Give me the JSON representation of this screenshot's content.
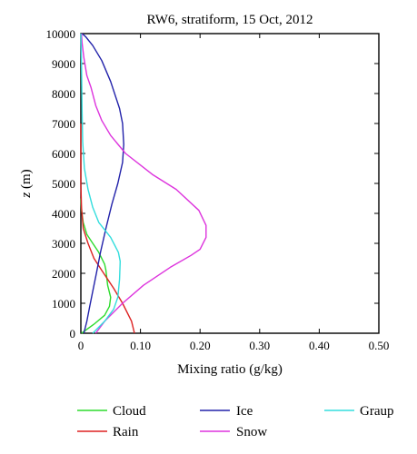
{
  "chart_data": {
    "type": "line",
    "title": "RW6, stratiform, 15 Oct, 2012",
    "xlabel": "Mixing ratio (g/kg)",
    "ylabel_italic": "z",
    "ylabel_unit": " (m)",
    "xlim": [
      0,
      0.5
    ],
    "ylim": [
      0,
      10000
    ],
    "xticks": [
      0,
      0.1,
      0.2,
      0.3,
      0.4,
      0.5
    ],
    "xtick_labels": [
      "0",
      "0.10",
      "0.20",
      "0.30",
      "0.40",
      "0.50"
    ],
    "yticks": [
      0,
      1000,
      2000,
      3000,
      4000,
      5000,
      6000,
      7000,
      8000,
      9000,
      10000
    ],
    "ytick_labels": [
      "0",
      "1000",
      "2000",
      "3000",
      "4000",
      "5000",
      "6000",
      "7000",
      "8000",
      "9000",
      "10000"
    ],
    "grid": false,
    "legend_position": "bottom",
    "series": [
      {
        "name": "Cloud",
        "color": "#2ddc2d",
        "points": [
          [
            0.001,
            0
          ],
          [
            0.022,
            300
          ],
          [
            0.04,
            600
          ],
          [
            0.048,
            900
          ],
          [
            0.05,
            1200
          ],
          [
            0.045,
            1600
          ],
          [
            0.042,
            2100
          ],
          [
            0.04,
            2300
          ],
          [
            0.03,
            2700
          ],
          [
            0.02,
            3000
          ],
          [
            0.01,
            3300
          ],
          [
            0.004,
            3700
          ],
          [
            0.001,
            4100
          ],
          [
            0,
            4500
          ]
        ]
      },
      {
        "name": "Rain",
        "color": "#dd2222",
        "points": [
          [
            0.09,
            0
          ],
          [
            0.085,
            400
          ],
          [
            0.07,
            1000
          ],
          [
            0.055,
            1500
          ],
          [
            0.035,
            2100
          ],
          [
            0.022,
            2500
          ],
          [
            0.012,
            3000
          ],
          [
            0.004,
            3500
          ],
          [
            0.001,
            4200
          ],
          [
            0,
            5000
          ],
          [
            0,
            6000
          ],
          [
            0,
            7000
          ]
        ]
      },
      {
        "name": "Ice",
        "color": "#2222aa",
        "points": [
          [
            0.005,
            0
          ],
          [
            0.01,
            400
          ],
          [
            0.015,
            900
          ],
          [
            0.02,
            1400
          ],
          [
            0.026,
            2000
          ],
          [
            0.033,
            2700
          ],
          [
            0.042,
            3500
          ],
          [
            0.052,
            4300
          ],
          [
            0.062,
            5000
          ],
          [
            0.07,
            5700
          ],
          [
            0.072,
            6300
          ],
          [
            0.07,
            7000
          ],
          [
            0.065,
            7500
          ],
          [
            0.05,
            8400
          ],
          [
            0.035,
            9100
          ],
          [
            0.02,
            9600
          ],
          [
            0.008,
            9900
          ],
          [
            0.002,
            10000
          ]
        ]
      },
      {
        "name": "Snow",
        "color": "#dd33dd",
        "points": [
          [
            0.025,
            0
          ],
          [
            0.04,
            400
          ],
          [
            0.07,
            1000
          ],
          [
            0.105,
            1600
          ],
          [
            0.15,
            2200
          ],
          [
            0.185,
            2600
          ],
          [
            0.2,
            2800
          ],
          [
            0.21,
            3200
          ],
          [
            0.21,
            3600
          ],
          [
            0.198,
            4100
          ],
          [
            0.16,
            4800
          ],
          [
            0.12,
            5300
          ],
          [
            0.075,
            6000
          ],
          [
            0.05,
            6600
          ],
          [
            0.035,
            7100
          ],
          [
            0.025,
            7600
          ],
          [
            0.017,
            8200
          ],
          [
            0.01,
            8600
          ],
          [
            0.005,
            9200
          ],
          [
            0.002,
            9700
          ],
          [
            0.001,
            10000
          ]
        ]
      },
      {
        "name": "Graup",
        "color": "#33dddd",
        "points": [
          [
            0.02,
            0
          ],
          [
            0.04,
            400
          ],
          [
            0.055,
            800
          ],
          [
            0.062,
            1200
          ],
          [
            0.065,
            1800
          ],
          [
            0.066,
            2400
          ],
          [
            0.063,
            2700
          ],
          [
            0.05,
            3200
          ],
          [
            0.03,
            3700
          ],
          [
            0.02,
            4200
          ],
          [
            0.012,
            4800
          ],
          [
            0.006,
            5500
          ],
          [
            0.003,
            6400
          ],
          [
            0.002,
            7500
          ],
          [
            0.001,
            9000
          ],
          [
            0,
            10000
          ]
        ]
      }
    ]
  }
}
